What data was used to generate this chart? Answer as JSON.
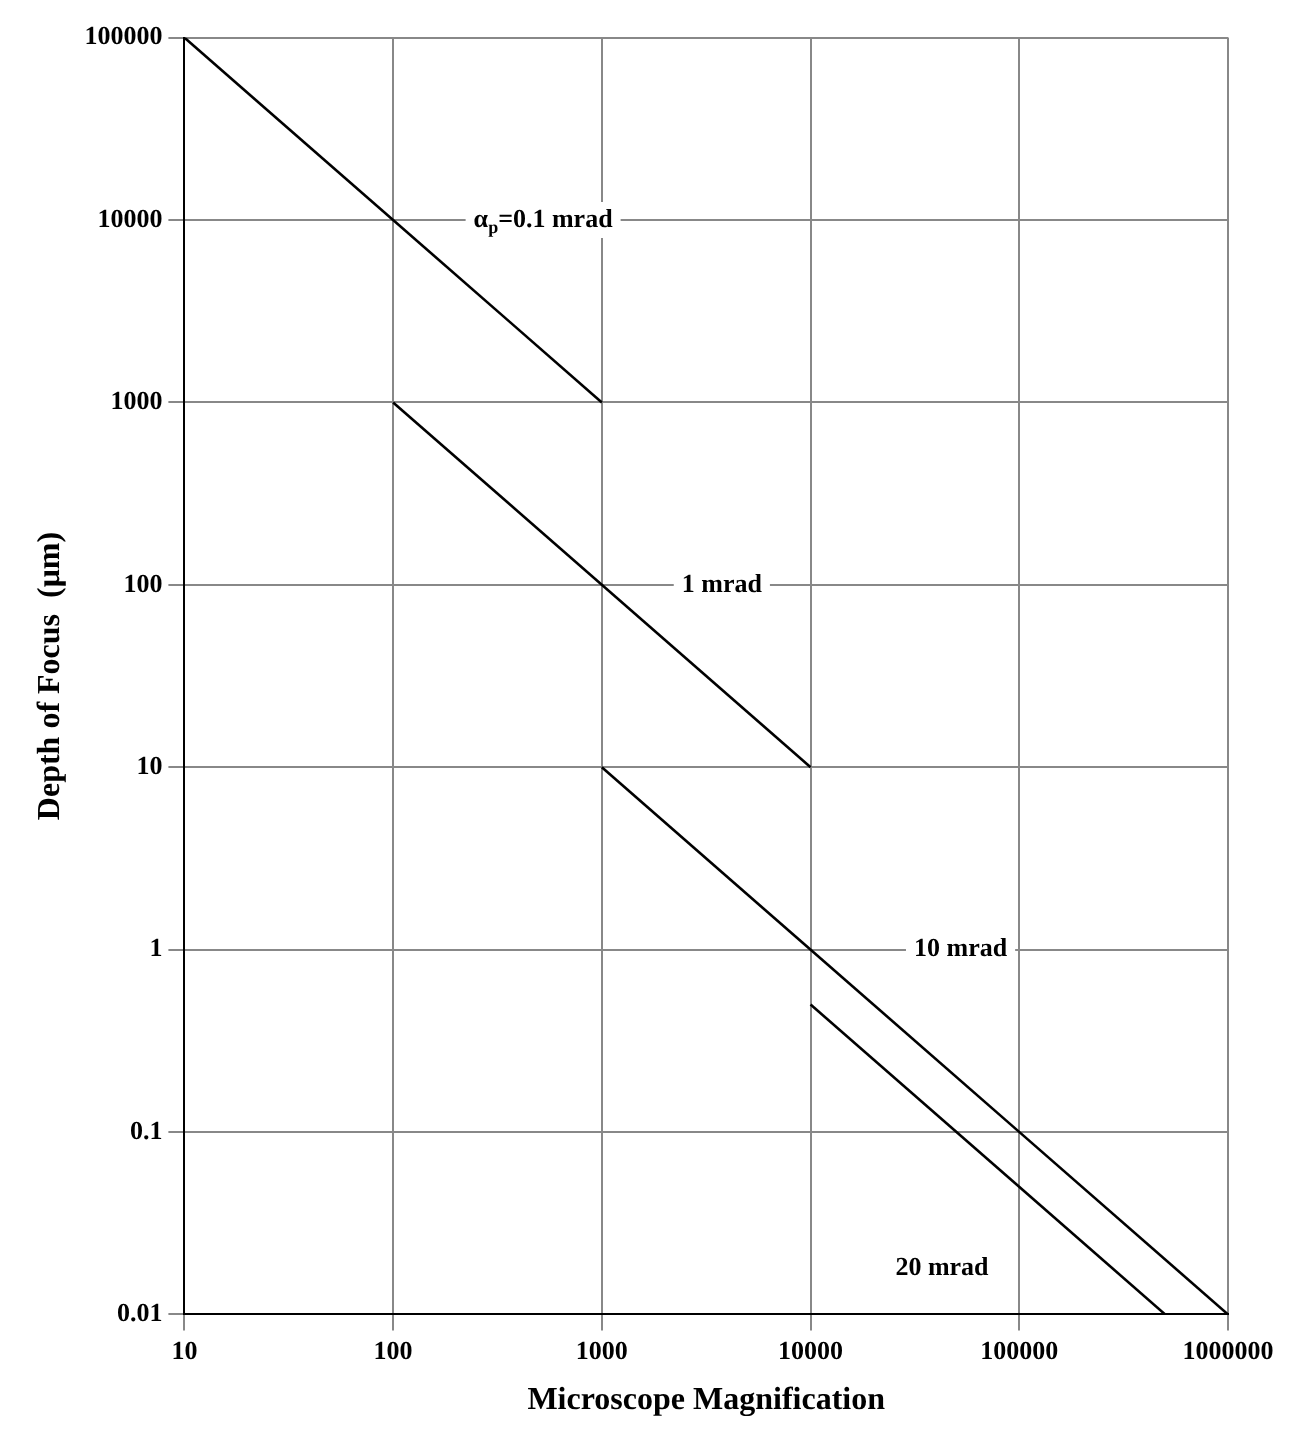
{
  "chart_data": {
    "type": "line",
    "xlabel": "Microscope Magnification",
    "ylabel": "Depth of Focus  (μm)",
    "log": "xy",
    "grid": true,
    "legend": false,
    "marker": "none",
    "line_style": "solid",
    "xlim": [
      10,
      1000000
    ],
    "ylim": [
      0.01,
      100000
    ],
    "xticks": [
      10,
      100,
      1000,
      10000,
      100000,
      1000000
    ],
    "yticks": [
      0.01,
      0.1,
      1,
      10,
      100,
      1000,
      10000,
      100000
    ],
    "series": [
      {
        "name": "α$_{p}$=0.1 mrad",
        "color": "#000000",
        "x": [
          10,
          1000
        ],
        "values": [
          100000,
          1000
        ]
      },
      {
        "name": "1 mrad",
        "color": "#000000",
        "x": [
          100,
          10000
        ],
        "values": [
          1000,
          10
        ]
      },
      {
        "name": "10 mrad",
        "color": "#000000",
        "x": [
          1000,
          1000000
        ],
        "values": [
          10,
          0.01
        ]
      },
      {
        "name": "20 mrad",
        "color": "#000000",
        "x": [
          10000,
          500000
        ],
        "values": [
          0.5,
          0.01
        ]
      }
    ]
  }
}
